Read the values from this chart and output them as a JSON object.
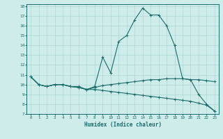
{
  "xlabel": "Humidex (Indice chaleur)",
  "xlim": [
    -0.5,
    23.5
  ],
  "ylim": [
    7,
    18.2
  ],
  "yticks": [
    7,
    8,
    9,
    10,
    11,
    12,
    13,
    14,
    15,
    16,
    17,
    18
  ],
  "xticks": [
    0,
    1,
    2,
    3,
    4,
    5,
    6,
    7,
    8,
    9,
    10,
    11,
    12,
    13,
    14,
    15,
    16,
    17,
    18,
    19,
    20,
    21,
    22,
    23
  ],
  "bg_color": "#ceecea",
  "grid_color": "#b0d9d6",
  "line_color": "#1a6b6b",
  "series": {
    "main": {
      "x": [
        0,
        1,
        2,
        3,
        4,
        5,
        6,
        7,
        8,
        9,
        10,
        11,
        12,
        13,
        14,
        15,
        16,
        17,
        18,
        19,
        20,
        21,
        22,
        23
      ],
      "y": [
        10.8,
        10.0,
        9.8,
        10.0,
        10.0,
        9.8,
        9.8,
        9.5,
        9.8,
        12.8,
        11.2,
        14.4,
        15.0,
        16.6,
        17.8,
        17.1,
        17.1,
        16.0,
        14.0,
        10.6,
        10.5,
        9.0,
        8.0,
        7.3
      ]
    },
    "flat": {
      "x": [
        0,
        1,
        2,
        3,
        4,
        5,
        6,
        7,
        8,
        9,
        10,
        11,
        12,
        13,
        14,
        15,
        16,
        17,
        18,
        19,
        20,
        21,
        22,
        23
      ],
      "y": [
        10.8,
        10.0,
        9.8,
        10.0,
        10.0,
        9.8,
        9.7,
        9.5,
        9.7,
        9.9,
        10.0,
        10.1,
        10.2,
        10.3,
        10.4,
        10.5,
        10.5,
        10.6,
        10.6,
        10.6,
        10.5,
        10.5,
        10.4,
        10.3
      ]
    },
    "diagonal": {
      "x": [
        0,
        1,
        2,
        3,
        4,
        5,
        6,
        7,
        8,
        9,
        10,
        11,
        12,
        13,
        14,
        15,
        16,
        17,
        18,
        19,
        20,
        21,
        22,
        23
      ],
      "y": [
        10.8,
        10.0,
        9.8,
        10.0,
        10.0,
        9.8,
        9.7,
        9.5,
        9.5,
        9.4,
        9.3,
        9.2,
        9.1,
        9.0,
        8.9,
        8.8,
        8.7,
        8.6,
        8.5,
        8.4,
        8.3,
        8.1,
        7.9,
        7.3
      ]
    }
  }
}
